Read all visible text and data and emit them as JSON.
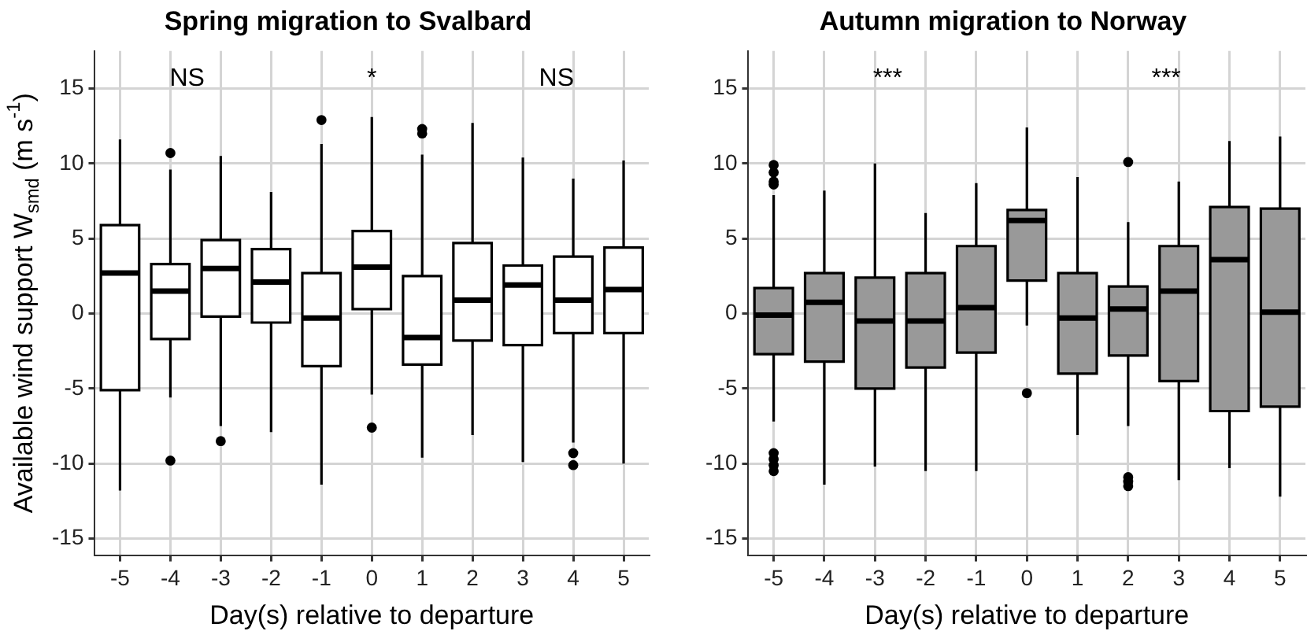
{
  "chart_data": [
    {
      "type": "box",
      "title": "Spring migration to Svalbard",
      "xlabel": "Day(s) relative to departure",
      "ylabel": "Available wind support W$_{smd}$ (m s$^{-1}$)",
      "categories": [
        "-5",
        "-4",
        "-3",
        "-2",
        "-1",
        "0",
        "1",
        "2",
        "3",
        "4",
        "5"
      ],
      "ylim": [
        -16.1,
        17.5
      ],
      "yticks": [
        -15,
        -10,
        -5,
        0,
        5,
        10,
        15
      ],
      "grid": true,
      "series": [
        {
          "color": "#ffffff",
          "boxes": [
            {
              "low": -11.8,
              "q1": -5.1,
              "median": 2.7,
              "q3": 5.9,
              "high": 11.6
            },
            {
              "low": -5.6,
              "q1": -1.7,
              "median": 1.5,
              "q3": 3.3,
              "high": 9.6,
              "outliers": [
                10.7,
                -9.8
              ]
            },
            {
              "low": -7.5,
              "q1": -0.2,
              "median": 3.0,
              "q3": 4.9,
              "high": 10.5,
              "outliers": [
                -8.5
              ]
            },
            {
              "low": -7.9,
              "q1": -0.6,
              "median": 2.1,
              "q3": 4.3,
              "high": 8.1
            },
            {
              "low": -11.4,
              "q1": -3.5,
              "median": -0.3,
              "q3": 2.7,
              "high": 11.3,
              "outliers": [
                12.9
              ]
            },
            {
              "low": -5.4,
              "q1": 0.3,
              "median": 3.1,
              "q3": 5.5,
              "high": 13.1,
              "outliers": [
                -7.6
              ]
            },
            {
              "low": -9.6,
              "q1": -3.4,
              "median": -1.6,
              "q3": 2.5,
              "high": 10.6,
              "outliers": [
                12.0,
                12.3
              ]
            },
            {
              "low": -8.1,
              "q1": -1.8,
              "median": 0.9,
              "q3": 4.7,
              "high": 12.7
            },
            {
              "low": -9.9,
              "q1": -2.1,
              "median": 1.9,
              "q3": 3.2,
              "high": 10.4
            },
            {
              "low": -8.6,
              "q1": -1.3,
              "median": 0.9,
              "q3": 3.8,
              "high": 9.0,
              "outliers": [
                -9.3,
                -10.1
              ]
            },
            {
              "low": -10.0,
              "q1": -1.3,
              "median": 1.6,
              "q3": 4.4,
              "high": 10.2
            }
          ]
        }
      ],
      "annotations": [
        "NS",
        "*",
        "NS"
      ]
    },
    {
      "type": "box",
      "title": "Autumn migration to Norway",
      "xlabel": "Day(s) relative to departure",
      "categories": [
        "-5",
        "-4",
        "-3",
        "-2",
        "-1",
        "0",
        "1",
        "2",
        "3",
        "4",
        "5"
      ],
      "ylim": [
        -16.1,
        17.5
      ],
      "yticks": [
        -15,
        -10,
        -5,
        0,
        5,
        10,
        15
      ],
      "grid": true,
      "series": [
        {
          "color": "#999999",
          "boxes": [
            {
              "low": -7.2,
              "q1": -2.7,
              "median": -0.1,
              "q3": 1.7,
              "high": 7.9,
              "outliers": [
                9.9,
                9.4,
                8.8,
                8.6,
                -9.3,
                -9.7,
                -10.1,
                -10.5
              ]
            },
            {
              "low": -11.4,
              "q1": -3.2,
              "median": 0.75,
              "q3": 2.7,
              "high": 8.2
            },
            {
              "low": -10.2,
              "q1": -5.0,
              "median": -0.5,
              "q3": 2.4,
              "high": 10.0
            },
            {
              "low": -10.5,
              "q1": -3.6,
              "median": -0.5,
              "q3": 2.7,
              "high": 6.7
            },
            {
              "low": -10.5,
              "q1": -2.6,
              "median": 0.4,
              "q3": 4.5,
              "high": 8.7
            },
            {
              "low": -0.8,
              "q1": 2.2,
              "median": 6.2,
              "q3": 6.9,
              "high": 12.4,
              "outliers": [
                -5.3
              ]
            },
            {
              "low": -8.1,
              "q1": -4.0,
              "median": -0.3,
              "q3": 2.7,
              "high": 9.1
            },
            {
              "low": -7.5,
              "q1": -2.8,
              "median": 0.3,
              "q3": 1.8,
              "high": 6.1,
              "outliers": [
                10.1,
                -10.9,
                -11.2,
                -11.5
              ]
            },
            {
              "low": -11.1,
              "q1": -4.5,
              "median": 1.5,
              "q3": 4.5,
              "high": 8.8
            },
            {
              "low": -10.3,
              "q1": -6.5,
              "median": 3.6,
              "q3": 7.1,
              "high": 11.5
            },
            {
              "low": -12.2,
              "q1": -6.2,
              "median": 0.1,
              "q3": 7.0,
              "high": 11.8
            }
          ]
        }
      ],
      "annotations": [
        "***",
        "***"
      ]
    }
  ]
}
